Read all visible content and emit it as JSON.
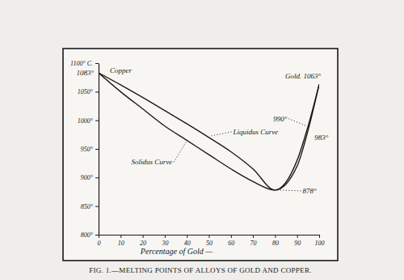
{
  "chart_data": {
    "type": "line",
    "title": "FIG. 1.—MELTING POINTS OF ALLOYS OF GOLD AND COPPER.",
    "x_label": "Percentage of Gold —",
    "x": [
      0,
      10,
      20,
      30,
      40,
      50,
      60,
      70,
      80,
      90,
      95,
      100
    ],
    "series": [
      {
        "name": "Liquidus Curve",
        "color": "#1a1a1a",
        "line_style": "solid",
        "values": [
          1083,
          1062,
          1040,
          1017,
          994,
          970,
          945,
          915,
          878,
          930,
          990,
          1063
        ]
      },
      {
        "name": "Solidus Curve",
        "color": "#1a1a1a",
        "line_style": "solid",
        "values": [
          1083,
          1050,
          1020,
          990,
          965,
          940,
          915,
          893,
          878,
          920,
          983,
          1063
        ]
      }
    ],
    "annotations": [
      {
        "text": "1083°",
        "x": 0,
        "y": 1083
      },
      {
        "text": "Copper",
        "x": 0,
        "y": 1083
      },
      {
        "text": "Gold. 1063°",
        "x": 100,
        "y": 1063
      },
      {
        "text": "990°",
        "x": 95,
        "y": 990
      },
      {
        "text": "983°",
        "x": 95,
        "y": 983
      },
      {
        "text": "878°",
        "x": 80,
        "y": 878
      }
    ],
    "xlim": [
      0,
      100
    ],
    "ylim": [
      800,
      1100
    ],
    "xticks": [
      0,
      10,
      20,
      30,
      40,
      50,
      60,
      70,
      80,
      90,
      100
    ],
    "yticks": [
      {
        "value": 800,
        "label": "800°"
      },
      {
        "value": 850,
        "label": "850°"
      },
      {
        "value": 900,
        "label": "900°"
      },
      {
        "value": 950,
        "label": "950°"
      },
      {
        "value": 1000,
        "label": "1000°"
      },
      {
        "value": 1050,
        "label": "1050°"
      },
      {
        "value": 1100,
        "label": "1100° C."
      }
    ],
    "grid": false
  }
}
